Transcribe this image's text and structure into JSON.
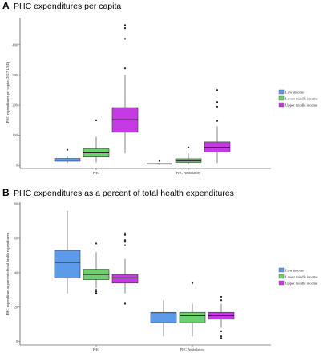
{
  "colors": {
    "low": "#5b9bea",
    "lower_middle": "#6fd06f",
    "upper_middle": "#c63ae6"
  },
  "chart_data": [
    {
      "type": "box",
      "panel": "A",
      "title": "PHC expenditures per capita",
      "ylabel": "PHC expenditures per capita (2017 USD)",
      "xlabel": "",
      "ylim": [
        -10,
        490
      ],
      "yticks": [
        0,
        100,
        200,
        300,
        400
      ],
      "categories": [
        "PHC",
        "PHC Ambulatory"
      ],
      "legend": {
        "position": "right",
        "entries": [
          "Low income",
          "Lower middle income",
          "Upper middle income"
        ]
      },
      "series": [
        {
          "name": "Low income",
          "boxes": [
            {
              "whisker_low": 8,
              "q1": 14,
              "median": 18,
              "q3": 23,
              "whisker_high": 30,
              "outliers": [
                52
              ]
            },
            {
              "whisker_low": 2,
              "q1": 4,
              "median": 5,
              "q3": 6,
              "whisker_high": 8,
              "outliers": [
                15
              ]
            }
          ]
        },
        {
          "name": "Lower middle income",
          "boxes": [
            {
              "whisker_low": 10,
              "q1": 28,
              "median": 42,
              "q3": 55,
              "whisker_high": 95,
              "outliers": [
                150
              ]
            },
            {
              "whisker_low": 3,
              "q1": 10,
              "median": 15,
              "q3": 22,
              "whisker_high": 40,
              "outliers": [
                60
              ]
            }
          ]
        },
        {
          "name": "Upper middle income",
          "boxes": [
            {
              "whisker_low": 40,
              "q1": 110,
              "median": 152,
              "q3": 192,
              "whisker_high": 300,
              "outliers": [
                322,
                420,
                455,
                465
              ]
            },
            {
              "whisker_low": 8,
              "q1": 45,
              "median": 60,
              "q3": 78,
              "whisker_high": 130,
              "outliers": [
                148,
                195,
                210,
                250
              ]
            }
          ]
        }
      ]
    },
    {
      "type": "box",
      "panel": "B",
      "title": "PHC expenditures as a percent of total health expenditures",
      "ylabel": "PHC expenditure as percent of total health expenditures",
      "xlabel": "",
      "ylim": [
        -2,
        81
      ],
      "yticks": [
        0,
        20,
        40,
        60,
        80
      ],
      "categories": [
        "PHC",
        "PHC Ambulatory"
      ],
      "legend": {
        "position": "right",
        "entries": [
          "Low income",
          "Lower middle income",
          "Upper middle income"
        ]
      },
      "series": [
        {
          "name": "Low income",
          "boxes": [
            {
              "whisker_low": 28,
              "q1": 37,
              "median": 46,
              "q3": 53,
              "whisker_high": 76,
              "outliers": []
            },
            {
              "whisker_low": 3,
              "q1": 11,
              "median": 16,
              "q3": 17,
              "whisker_high": 24,
              "outliers": []
            }
          ]
        },
        {
          "name": "Lower middle income",
          "boxes": [
            {
              "whisker_low": 31,
              "q1": 36,
              "median": 39,
              "q3": 42,
              "whisker_high": 52,
              "outliers": [
                57,
                30,
                29,
                28
              ]
            },
            {
              "whisker_low": 3,
              "q1": 11,
              "median": 15,
              "q3": 17,
              "whisker_high": 22,
              "outliers": [
                34
              ]
            }
          ]
        },
        {
          "name": "Upper middle income",
          "boxes": [
            {
              "whisker_low": 28,
              "q1": 34,
              "median": 37,
              "q3": 39,
              "whisker_high": 48,
              "outliers": [
                63,
                62,
                59,
                58,
                56,
                22
              ]
            },
            {
              "whisker_low": 8,
              "q1": 13,
              "median": 15,
              "q3": 17,
              "whisker_high": 22,
              "outliers": [
                26,
                24,
                6,
                3,
                2
              ]
            }
          ]
        }
      ]
    }
  ]
}
